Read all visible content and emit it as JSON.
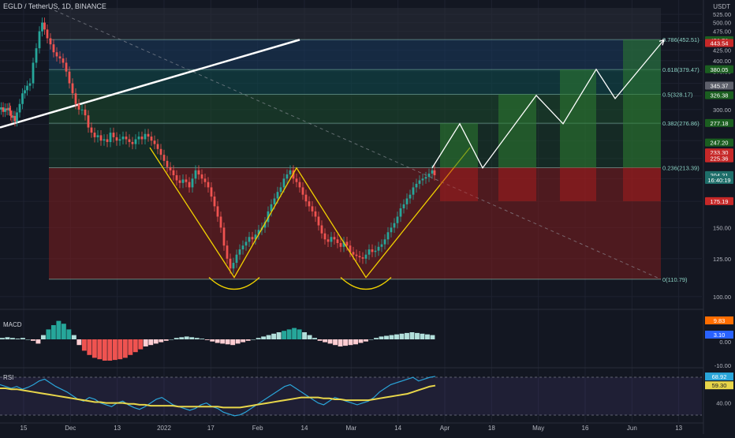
{
  "header": {
    "symbol": "EGLD / TetherUS, 1D, BINANCE",
    "currency": "USDT"
  },
  "colors": {
    "background": "#131722",
    "grid": "#1e2230",
    "candle_up": "#26a69a",
    "candle_down": "#ef5350",
    "pattern_line": "#f0d000",
    "projection": "#ffffff",
    "fib_zone_red": "#7f1d1d",
    "fib_zone_green": "#1b4d2b",
    "fib_zone_teal": "#0f4c4c",
    "fib_zone_blue": "#1a3a5c",
    "fib_zone_gray": "#2a2e39",
    "rsi_line": "#2aa5d9",
    "rsi_ma": "#e8d64a",
    "macd_line": "#2962ff",
    "signal_line": "#ff6d00"
  },
  "chart_data": [
    {
      "type": "line",
      "panel": "price",
      "scale": "log",
      "ylim": [
        95,
        545
      ],
      "price_ticks": [
        525,
        500,
        475,
        450,
        425,
        400,
        375,
        350,
        325,
        300,
        275,
        250,
        225,
        200,
        175,
        150,
        125,
        100
      ],
      "time_axis": [
        "15",
        "Dec",
        "13",
        "2022",
        "17",
        "Feb",
        "14",
        "Mar",
        "14",
        "Apr",
        "18",
        "May",
        "16",
        "Jun",
        "13"
      ],
      "series": [
        {
          "values": [
            [
              0,
              300
            ],
            [
              3,
              304
            ],
            [
              5,
              296
            ],
            [
              8,
              302
            ],
            [
              10,
              299
            ],
            [
              12,
              303
            ],
            [
              13,
              298
            ],
            [
              14,
              290
            ],
            [
              16,
              286
            ],
            [
              18,
              289
            ],
            [
              20,
              280
            ],
            [
              23,
              295
            ],
            [
              27,
              310
            ],
            [
              30,
              330
            ],
            [
              33,
              336
            ],
            [
              36,
              345
            ],
            [
              40,
              350
            ],
            [
              44,
              395
            ],
            [
              48,
              430
            ],
            [
              52,
              475
            ],
            [
              55,
              500
            ],
            [
              58,
              480
            ],
            [
              62,
              456
            ],
            [
              66,
              440
            ],
            [
              70,
              420
            ],
            [
              74,
              410
            ],
            [
              78,
              405
            ],
            [
              82,
              395
            ],
            [
              86,
              375
            ],
            [
              90,
              350
            ],
            [
              94,
              330
            ],
            [
              98,
              310
            ],
            [
              102,
              300
            ],
            [
              106,
              300
            ],
            [
              110,
              290
            ],
            [
              114,
              270
            ],
            [
              118,
              262
            ],
            [
              122,
              255
            ],
            [
              126,
              258
            ],
            [
              130,
              250
            ],
            [
              134,
              252
            ],
            [
              138,
              248
            ],
            [
              142,
              262
            ],
            [
              146,
              255
            ],
            [
              150,
              250
            ],
            [
              154,
              252
            ],
            [
              158,
              256
            ],
            [
              162,
              252
            ],
            [
              166,
              248
            ],
            [
              170,
              245
            ],
            [
              174,
              252
            ],
            [
              178,
              256
            ],
            [
              182,
              252
            ],
            [
              186,
              260
            ],
            [
              190,
              256
            ],
            [
              194,
              250
            ],
            [
              198,
              245
            ],
            [
              202,
              238
            ],
            [
              206,
              230
            ],
            [
              210,
              222
            ],
            [
              214,
              214
            ],
            [
              218,
              210
            ],
            [
              222,
              204
            ],
            [
              226,
              198
            ],
            [
              230,
              195
            ],
            [
              234,
              199
            ],
            [
              238,
              196
            ],
            [
              242,
              190
            ],
            [
              246,
              200
            ],
            [
              250,
              210
            ],
            [
              254,
              205
            ],
            [
              258,
              200
            ],
            [
              262,
              196
            ],
            [
              266,
              190
            ],
            [
              270,
              180
            ],
            [
              274,
              170
            ],
            [
              278,
              160
            ],
            [
              282,
              150
            ],
            [
              286,
              135
            ],
            [
              290,
              125
            ],
            [
              294,
              118
            ],
            [
              298,
              122
            ],
            [
              302,
              128
            ],
            [
              306,
              132
            ],
            [
              310,
              135
            ],
            [
              314,
              138
            ],
            [
              318,
              142
            ],
            [
              322,
              140
            ],
            [
              326,
              144
            ],
            [
              330,
              148
            ],
            [
              334,
              150
            ],
            [
              338,
              155
            ],
            [
              342,
              165
            ],
            [
              346,
              172
            ],
            [
              350,
              178
            ],
            [
              354,
              185
            ],
            [
              358,
              190
            ],
            [
              362,
              200
            ],
            [
              366,
              205
            ],
            [
              370,
              210
            ],
            [
              374,
              200
            ],
            [
              378,
              196
            ],
            [
              382,
              190
            ],
            [
              386,
              182
            ],
            [
              390,
              175
            ],
            [
              394,
              170
            ],
            [
              398,
              165
            ],
            [
              402,
              160
            ],
            [
              406,
              152
            ],
            [
              410,
              145
            ],
            [
              414,
              140
            ],
            [
              418,
              138
            ],
            [
              422,
              142
            ],
            [
              426,
              140
            ],
            [
              430,
              137
            ],
            [
              434,
              134
            ],
            [
              438,
              138
            ],
            [
              442,
              135
            ],
            [
              446,
              130
            ],
            [
              450,
              128
            ],
            [
              454,
              127
            ],
            [
              458,
              126
            ],
            [
              462,
              125
            ],
            [
              466,
              128
            ],
            [
              470,
              132
            ],
            [
              474,
              130
            ],
            [
              478,
              131
            ],
            [
              482,
              134
            ],
            [
              486,
              136
            ],
            [
              490,
              140
            ],
            [
              494,
              146
            ],
            [
              498,
              150
            ],
            [
              502,
              154
            ],
            [
              506,
              160
            ],
            [
              510,
              168
            ],
            [
              514,
              172
            ],
            [
              518,
              178
            ],
            [
              522,
              182
            ],
            [
              526,
              190
            ],
            [
              530,
              194
            ],
            [
              534,
              198
            ],
            [
              538,
              200
            ],
            [
              542,
              202
            ],
            [
              546,
              206
            ],
            [
              550,
              210
            ],
            [
              552,
              204
            ]
          ]
        }
      ],
      "fib_levels": [
        {
          "label": "0.786(452.51)",
          "price": 452.51
        },
        {
          "label": "0.618(379.47)",
          "price": 379.47
        },
        {
          "label": "0.5(328.17)",
          "price": 328.17
        },
        {
          "label": "0.382(276.86)",
          "price": 276.86
        },
        {
          "label": "0.236(213.39)",
          "price": 213.39
        },
        {
          "label": "0(110.79)",
          "price": 110.79
        }
      ],
      "pattern_zigzag": [
        [
          190,
          240
        ],
        [
          297,
          112
        ],
        [
          376,
          213
        ],
        [
          464,
          112
        ],
        [
          596,
          240
        ]
      ],
      "projection": [
        [
          548,
          213
        ],
        [
          583,
          276
        ],
        [
          612,
          213
        ],
        [
          680,
          326
        ],
        [
          714,
          276
        ],
        [
          756,
          380
        ],
        [
          780,
          320
        ],
        [
          842,
          452
        ]
      ],
      "trendline_white": [
        [
          0,
          270
        ],
        [
          380,
          452
        ]
      ],
      "price_labels": [
        {
          "text": "450.72",
          "price": 450.72,
          "color": "#1b5e20"
        },
        {
          "text": "443.54",
          "price": 443.54,
          "color": "#c62828"
        },
        {
          "text": "380.05",
          "price": 380.05,
          "color": "#1b5e20"
        },
        {
          "text": "345.37",
          "price": 345.37,
          "color": "#5d606b"
        },
        {
          "text": "326.38",
          "price": 326.38,
          "color": "#1b5e20"
        },
        {
          "text": "277.18",
          "price": 277.18,
          "color": "#1b5e20"
        },
        {
          "text": "247.20",
          "price": 247.2,
          "color": "#1b5e20"
        },
        {
          "text": "233.30",
          "price": 233.3,
          "color": "#c62828"
        },
        {
          "text": "225.36",
          "price": 225.36,
          "color": "#c62828"
        },
        {
          "text": "204.21",
          "price": 204.21,
          "color": "#1e6e6a"
        },
        {
          "text": "16:40:19",
          "price": 198.5,
          "color": "#1e6e6a"
        },
        {
          "text": "175.19",
          "price": 175.19,
          "color": "#c62828"
        }
      ]
    },
    {
      "type": "bar",
      "panel": "macd",
      "label": "MACD",
      "axis_ticks": [
        "9.83",
        "3.10",
        "0.00",
        "-10.00"
      ],
      "histogram": [
        2,
        3,
        2,
        1,
        2,
        0,
        -2,
        -6,
        6,
        14,
        20,
        26,
        22,
        14,
        6,
        -8,
        -16,
        -22,
        -26,
        -28,
        -30,
        -30,
        -29,
        -28,
        -26,
        -22,
        -18,
        -14,
        -10,
        -8,
        -6,
        -4,
        -2,
        0,
        2,
        3,
        4,
        3,
        2,
        1,
        -1,
        -3,
        -5,
        -6,
        -7,
        -8,
        -6,
        -4,
        -2,
        0,
        2,
        4,
        6,
        8,
        10,
        12,
        14,
        16,
        14,
        10,
        6,
        2,
        -2,
        -4,
        -6,
        -8,
        -10,
        -9,
        -8,
        -7,
        -5,
        -3,
        0,
        2,
        4,
        5,
        6,
        7,
        8,
        9,
        10,
        9,
        8,
        7,
        6
      ]
    },
    {
      "type": "line",
      "panel": "rsi",
      "label": "RSI",
      "axis_ticks": [
        "68.92",
        "59.30",
        "40.00"
      ],
      "series": [
        {
          "values": [
            60,
            58,
            56,
            58,
            55,
            57,
            60,
            64,
            66,
            62,
            58,
            55,
            52,
            48,
            44,
            42,
            46,
            44,
            40,
            38,
            36,
            40,
            42,
            38,
            35,
            33,
            36,
            40,
            44,
            46,
            42,
            38,
            36,
            34,
            32,
            34,
            38,
            40,
            36,
            34,
            30,
            28,
            26,
            27,
            30,
            34,
            38,
            42,
            46,
            50,
            54,
            58,
            60,
            56,
            52,
            48,
            44,
            40,
            38,
            42,
            46,
            44,
            42,
            40,
            38,
            40,
            42,
            46,
            52,
            56,
            60,
            62,
            64,
            66,
            68,
            64,
            66,
            68,
            69
          ]
        },
        {
          "values": [
            56,
            56,
            55,
            55,
            54,
            53,
            52,
            51,
            50,
            49,
            48,
            47,
            46,
            45,
            44,
            43,
            42,
            41,
            41,
            40,
            40,
            40,
            40,
            39,
            39,
            38,
            38,
            37,
            37,
            37,
            37,
            37,
            36,
            36,
            36,
            36,
            36,
            36,
            36,
            36,
            35,
            35,
            35,
            35,
            36,
            37,
            38,
            39,
            40,
            41,
            42,
            43,
            44,
            45,
            46,
            46,
            46,
            46,
            45,
            45,
            44,
            44,
            43,
            43,
            43,
            43,
            43,
            44,
            45,
            46,
            47,
            48,
            49,
            50,
            52,
            54,
            56,
            58,
            59
          ]
        }
      ]
    }
  ]
}
